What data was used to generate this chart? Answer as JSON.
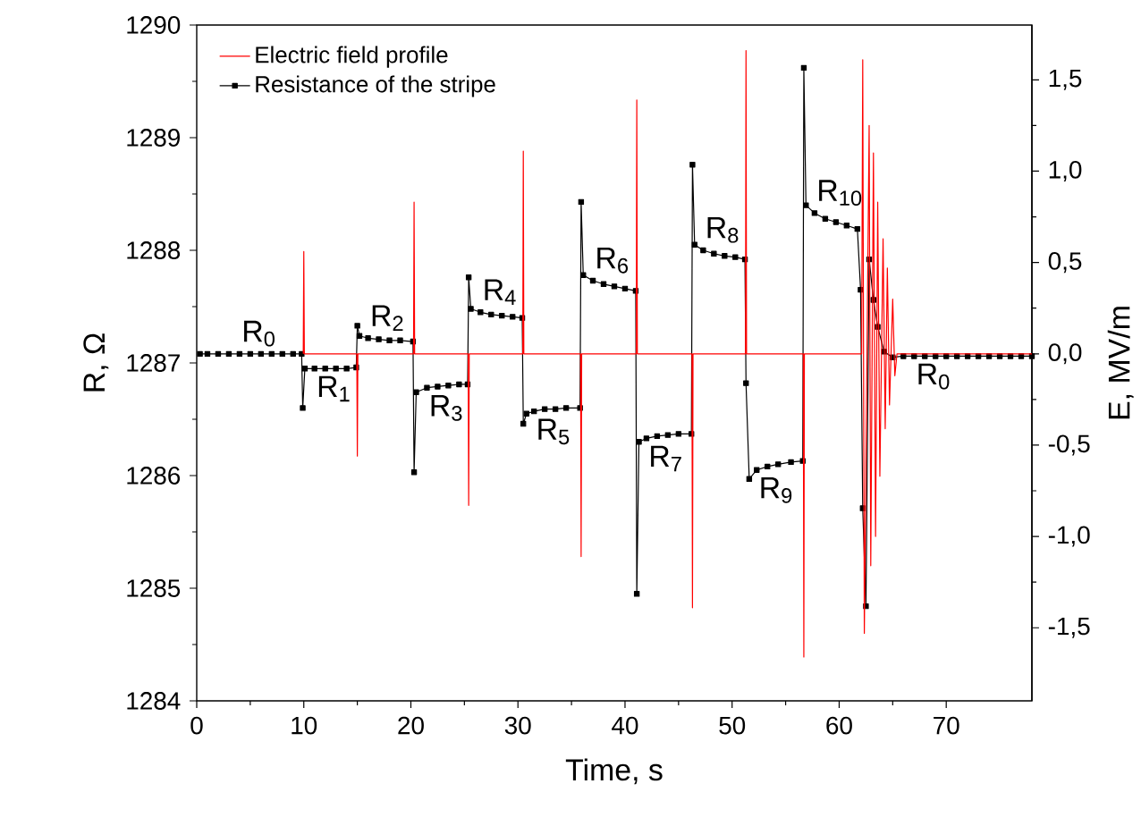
{
  "chart_data": {
    "type": "line",
    "xlabel": "Time, s",
    "ylabel": "R, Ω",
    "y2label": "E, MV/m",
    "xlim": [
      0,
      78
    ],
    "xticks": [
      0,
      10,
      20,
      30,
      40,
      50,
      60,
      70
    ],
    "ylim": [
      1284,
      1290
    ],
    "yticks": [
      1284,
      1285,
      1286,
      1287,
      1288,
      1289,
      1290
    ],
    "y2lim": [
      -1.9,
      1.8
    ],
    "y2ticks": [
      {
        "value": -1.5,
        "label": "-1,5"
      },
      {
        "value": -1.0,
        "label": "-1,0"
      },
      {
        "value": -0.5,
        "label": "-0,5"
      },
      {
        "value": 0,
        "label": "0,0"
      },
      {
        "value": 0.5,
        "label": "0,5"
      },
      {
        "value": 1.0,
        "label": "1,0"
      },
      {
        "value": 1.5,
        "label": "1,5"
      }
    ],
    "legend": "top left",
    "series": [
      {
        "name": "Electric field profile",
        "color": "#ff0000",
        "axis": "y2",
        "marker": "none",
        "x": [
          9.95,
          10,
          10.05,
          14.95,
          15,
          15.05,
          20.25,
          20.3,
          20.35,
          25.35,
          25.4,
          25.45,
          30.45,
          30.5,
          30.55,
          35.85,
          35.9,
          35.95,
          41.05,
          41.1,
          41.15,
          46.25,
          46.3,
          46.35,
          51.25,
          51.3,
          51.35,
          56.65,
          56.7,
          56.75,
          62.1,
          62.2,
          62.35,
          62.8,
          62.95,
          63.2,
          63.4,
          63.6,
          63.8,
          64.1,
          64.3,
          64.5,
          64.7,
          65.0,
          65.2,
          65.4,
          78
        ],
        "values": [
          0,
          0.56,
          0,
          0,
          -0.56,
          0,
          0,
          0.83,
          0,
          0,
          -0.83,
          0,
          0,
          1.11,
          0,
          0,
          -1.11,
          0,
          0,
          1.39,
          0,
          0,
          -1.39,
          0,
          0,
          1.66,
          0,
          0,
          -1.66,
          0,
          0,
          1.61,
          -1.53,
          1.25,
          -1.16,
          1.1,
          -1.0,
          0.83,
          -0.67,
          0.63,
          -0.41,
          0.47,
          -0.28,
          0.3,
          -0.12,
          0,
          0
        ]
      },
      {
        "name": "Resistance of the stripe",
        "color": "#000000",
        "axis": "y",
        "marker": "square",
        "x": [
          0.3,
          1,
          2,
          3,
          4,
          5,
          6,
          7,
          8,
          9,
          9.8,
          9.9,
          10.1,
          11,
          12,
          13,
          14,
          14.9,
          15.0,
          15.2,
          16,
          17,
          18,
          19,
          20.2,
          20.3,
          20.5,
          21.5,
          22.5,
          23.5,
          24.5,
          25.3,
          25.4,
          25.6,
          26.5,
          27.5,
          28.5,
          29.5,
          30.4,
          30.5,
          30.8,
          31.5,
          32.5,
          33.5,
          34.5,
          35.8,
          35.9,
          36.1,
          37,
          38,
          39,
          40,
          41.0,
          41.1,
          41.3,
          42,
          43,
          44,
          45,
          46.2,
          46.3,
          46.5,
          47.3,
          48.3,
          49.3,
          50.3,
          51.2,
          51.3,
          51.6,
          52.3,
          53.3,
          54.3,
          55.5,
          56.6,
          56.7,
          56.9,
          57.7,
          58.7,
          59.7,
          60.7,
          61.7,
          62.0,
          62.2,
          62.5,
          62.8,
          63.2,
          63.6,
          64.2,
          65,
          66,
          67,
          68,
          69,
          70,
          71,
          72,
          73,
          74,
          75,
          76,
          77,
          78
        ],
        "values": [
          1287.08,
          1287.08,
          1287.08,
          1287.08,
          1287.08,
          1287.08,
          1287.08,
          1287.08,
          1287.08,
          1287.08,
          1287.08,
          1286.6,
          1286.95,
          1286.95,
          1286.95,
          1286.95,
          1286.95,
          1286.96,
          1287.33,
          1287.24,
          1287.22,
          1287.21,
          1287.2,
          1287.2,
          1287.19,
          1286.03,
          1286.74,
          1286.78,
          1286.79,
          1286.8,
          1286.81,
          1286.81,
          1287.76,
          1287.48,
          1287.45,
          1287.43,
          1287.42,
          1287.41,
          1287.4,
          1286.46,
          1286.55,
          1286.57,
          1286.59,
          1286.59,
          1286.6,
          1286.6,
          1288.43,
          1287.78,
          1287.73,
          1287.7,
          1287.68,
          1287.66,
          1287.64,
          1284.95,
          1286.3,
          1286.33,
          1286.35,
          1286.36,
          1286.37,
          1286.37,
          1288.76,
          1288.05,
          1288.0,
          1287.97,
          1287.95,
          1287.94,
          1287.92,
          1286.82,
          1285.97,
          1286.05,
          1286.08,
          1286.1,
          1286.12,
          1286.13,
          1289.62,
          1288.4,
          1288.33,
          1288.28,
          1288.25,
          1288.22,
          1288.19,
          1287.65,
          1285.71,
          1284.84,
          1287.92,
          1287.56,
          1287.32,
          1287.1,
          1287.05,
          1287.06,
          1287.06,
          1287.06,
          1287.06,
          1287.06,
          1287.06,
          1287.06,
          1287.06,
          1287.06,
          1287.06,
          1287.06,
          1287.06,
          1287.06
        ]
      }
    ],
    "annotations": [
      {
        "text": "R$_{0}$",
        "x": 4,
        "y": 1287.08
      },
      {
        "text": "R$_{1}$",
        "x": 11,
        "y": 1286.95
      },
      {
        "text": "R$_{2}$",
        "x": 16,
        "y": 1287.22
      },
      {
        "text": "R$_{3}$",
        "x": 21.5,
        "y": 1286.78
      },
      {
        "text": "R$_{4}$",
        "x": 26.5,
        "y": 1287.45
      },
      {
        "text": "R$_{5}$",
        "x": 31.5,
        "y": 1286.57
      },
      {
        "text": "R$_{6}$",
        "x": 37,
        "y": 1287.73
      },
      {
        "text": "R$_{7}$",
        "x": 42,
        "y": 1286.33
      },
      {
        "text": "R$_{8}$",
        "x": 47.3,
        "y": 1288.0
      },
      {
        "text": "R$_{9}$",
        "x": 52.3,
        "y": 1286.05
      },
      {
        "text": "R$_{10}$",
        "x": 57.7,
        "y": 1288.33
      },
      {
        "text": "R$_{0}$",
        "x": 67,
        "y": 1287.06
      }
    ]
  }
}
